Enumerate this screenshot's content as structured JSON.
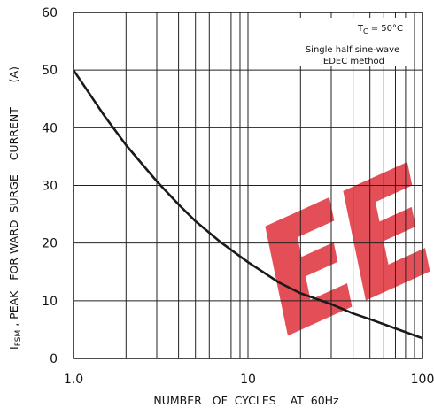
{
  "chart_data": {
    "type": "line",
    "x_scale": "log",
    "xlim": [
      1,
      100
    ],
    "ylim": [
      0,
      60
    ],
    "grid": true,
    "x_ticks": [
      "1.0",
      "10",
      "100"
    ],
    "y_ticks": [
      "0",
      "10",
      "20",
      "30",
      "40",
      "50",
      "60"
    ],
    "xlabel": "NUMBER   OF  CYCLES    AT  60Hz",
    "ylabel_parts": {
      "main": "I",
      "sub": "FSM",
      "rest": " , PEAK   FOR WARD  SURGE    CURRENT       (A)"
    },
    "annotations": {
      "line1_main": "T",
      "line1_sub": "C",
      "line1_rest": " = 50°C",
      "line2": "Single  half  sine-wave",
      "line3": "JEDEC    method"
    },
    "series": [
      {
        "x": [
          1,
          1.5,
          2,
          3,
          4,
          5,
          7,
          10,
          15,
          20,
          30,
          40,
          50,
          70,
          100
        ],
        "y": [
          50,
          42.1,
          37,
          30.7,
          26.7,
          23.8,
          20.1,
          16.7,
          13.2,
          11.3,
          9.4,
          7.8,
          6.8,
          5.2,
          3.5
        ],
        "color": "#1a1a1a"
      }
    ],
    "watermark_color": "#e0303a"
  }
}
